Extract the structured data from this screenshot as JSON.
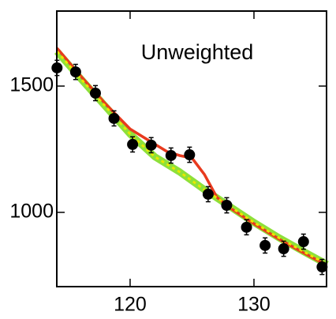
{
  "chart_data": {
    "type": "scatter",
    "annotation": "Unweighted",
    "xlim": [
      114.08,
      135.86
    ],
    "ylim": [
      706,
      1797
    ],
    "xticks": [
      120,
      130
    ],
    "yticks": [
      1000,
      1500
    ],
    "series": [
      {
        "type": "line",
        "color": "#8ee03a",
        "width": 9,
        "x": [
          114.1,
          116,
          118,
          120,
          122,
          124,
          126,
          128,
          130,
          132,
          134,
          135.9
        ],
        "values": [
          1637,
          1530,
          1420,
          1310,
          1220,
          1160,
          1090,
          1025,
          960,
          900,
          845,
          794
        ]
      },
      {
        "type": "line",
        "color": "#e83a1e",
        "width": 3.5,
        "x": [
          114.1,
          116,
          118,
          120,
          122,
          123,
          124,
          125,
          126,
          127,
          128,
          130,
          132,
          134,
          135.9
        ],
        "values": [
          1650,
          1540,
          1430,
          1330,
          1270,
          1240,
          1225,
          1215,
          1150,
          1060,
          1020,
          955,
          895,
          840,
          790
        ]
      },
      {
        "type": "dotted",
        "color": "#e8e800",
        "width": 3,
        "x": [
          114.1,
          116,
          118,
          120,
          122,
          124,
          126,
          128,
          130,
          132,
          134,
          135.9
        ],
        "values": [
          1637,
          1530,
          1420,
          1310,
          1220,
          1160,
          1090,
          1025,
          960,
          900,
          845,
          794
        ]
      },
      {
        "type": "scatter",
        "color": "#000000",
        "x": [
          114.1,
          115.6,
          117.2,
          118.7,
          120.2,
          121.7,
          123.3,
          124.8,
          126.3,
          127.8,
          129.4,
          130.9,
          132.4,
          134.0,
          135.5
        ],
        "values": [
          1572,
          1556,
          1472,
          1372,
          1269,
          1266,
          1225,
          1228,
          1072,
          1028,
          941,
          869,
          856,
          884,
          784
        ],
        "errors": [
          30,
          30,
          30,
          30,
          30,
          30,
          30,
          30,
          30,
          30,
          30,
          30,
          30,
          30,
          30
        ]
      }
    ]
  }
}
